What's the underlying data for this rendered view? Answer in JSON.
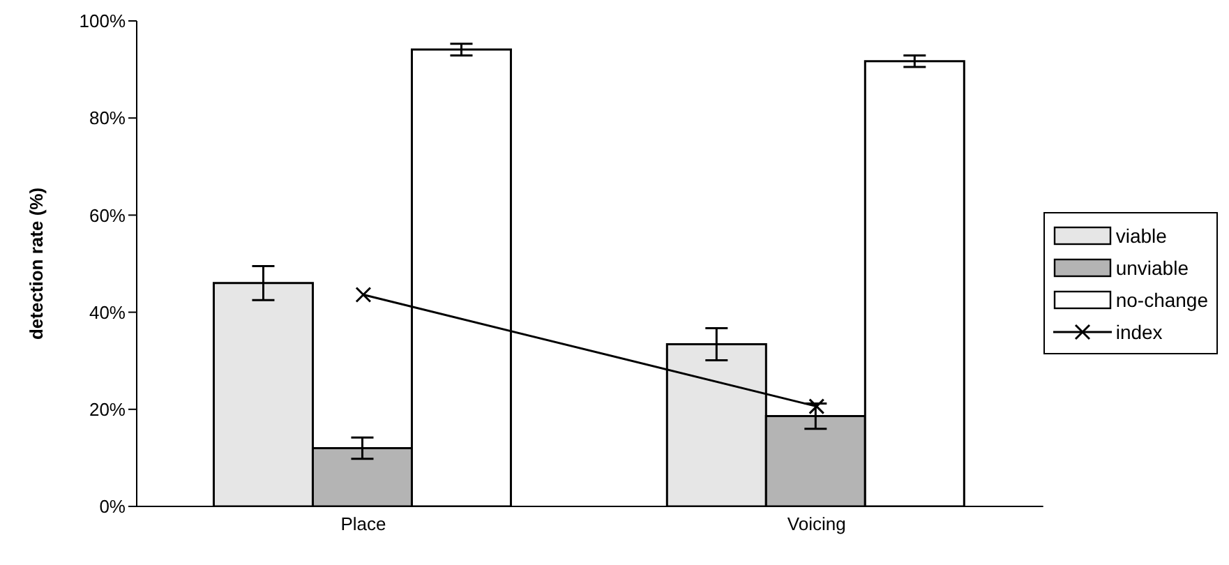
{
  "chart_data": {
    "type": "bar",
    "ylabel": "detection rate (%)",
    "categories": [
      "Place",
      "Voicing"
    ],
    "series": [
      {
        "name": "viable",
        "color": "#e6e6e6",
        "values": [
          46,
          33.4
        ],
        "errors": [
          3.5,
          3.3
        ]
      },
      {
        "name": "unviable",
        "color": "#b4b4b4",
        "values": [
          12,
          18.6
        ],
        "errors": [
          2.2,
          2.6
        ]
      },
      {
        "name": "no-change",
        "color": "#ffffff",
        "values": [
          94.1,
          91.7
        ],
        "errors": [
          1.2,
          1.2
        ]
      },
      {
        "name": "index",
        "type": "line",
        "color": "#000000",
        "values": [
          43.6,
          20.6
        ],
        "marker": "cross"
      }
    ],
    "ylim": [
      0,
      100
    ],
    "yticks": [
      {
        "value": 0,
        "label": "0%"
      },
      {
        "value": 20,
        "label": "20%"
      },
      {
        "value": 40,
        "label": "40%"
      },
      {
        "value": 60,
        "label": "60%"
      },
      {
        "value": 80,
        "label": "80%"
      },
      {
        "value": 100,
        "label": "100%"
      }
    ],
    "grid": false,
    "legend": "right"
  }
}
